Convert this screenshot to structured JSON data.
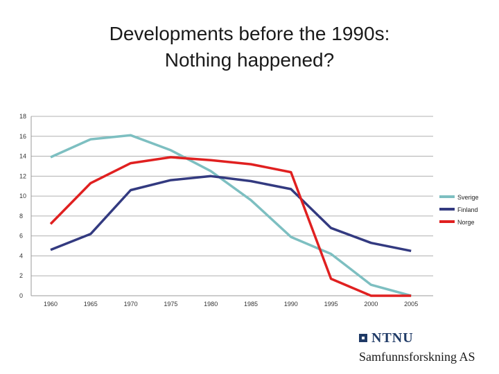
{
  "title": {
    "line1": "Developments before the 1990s:",
    "line2": "Nothing happened?"
  },
  "chart_data": {
    "type": "line",
    "x": [
      1960,
      1965,
      1970,
      1975,
      1980,
      1985,
      1990,
      1995,
      2000,
      2005
    ],
    "x_tick_labels": [
      "1960",
      "1965",
      "1970",
      "1975",
      "1980",
      "1985",
      "1990",
      "1995",
      "2000",
      "2005"
    ],
    "y_ticks": [
      0,
      2,
      4,
      6,
      8,
      10,
      12,
      14,
      16,
      18
    ],
    "y_tick_labels": [
      "0",
      "2",
      "4",
      "6",
      "8",
      "10",
      "12",
      "14",
      "16",
      "18"
    ],
    "ylim": [
      0,
      18
    ],
    "grid": true,
    "legend_position": "right",
    "series": [
      {
        "name": "Sverige",
        "color": "#7dbfc1",
        "values": [
          13.9,
          15.7,
          16.1,
          14.6,
          12.5,
          9.6,
          5.9,
          4.2,
          1.1,
          0.0
        ]
      },
      {
        "name": "Finland",
        "color": "#333a80",
        "values": [
          4.6,
          6.2,
          10.6,
          11.6,
          12.0,
          11.5,
          10.7,
          6.8,
          5.3,
          4.5
        ]
      },
      {
        "name": "Norge",
        "color": "#e02020",
        "values": [
          7.2,
          11.3,
          13.3,
          13.9,
          13.6,
          13.2,
          12.4,
          1.7,
          0.0,
          0.0
        ]
      }
    ]
  },
  "logo": {
    "name": "NTNU",
    "org": "Samfunnsforskning AS",
    "color": "#1f3a66"
  }
}
